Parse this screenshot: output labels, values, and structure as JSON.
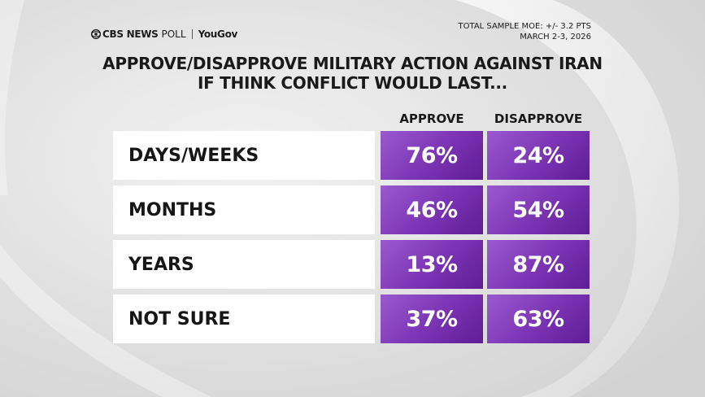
{
  "header": {
    "brand": "CBS NEWS",
    "brand_suffix": "POLL",
    "partner": "YouGov",
    "moe": "TOTAL SAMPLE MOE: +/- 3.2 PTS",
    "date": "MARCH 2-3, 2026"
  },
  "chart_data": {
    "type": "table",
    "title_line1": "APPROVE/DISAPPROVE MILITARY ACTION AGAINST IRAN",
    "title_line2": "IF THINK CONFLICT WOULD LAST...",
    "columns": [
      "APPROVE",
      "DISAPPROVE"
    ],
    "rows": [
      {
        "label": "DAYS/WEEKS",
        "approve": "76%",
        "disapprove": "24%"
      },
      {
        "label": "MONTHS",
        "approve": "46%",
        "disapprove": "54%"
      },
      {
        "label": "YEARS",
        "approve": "13%",
        "disapprove": "87%"
      },
      {
        "label": "NOT SURE",
        "approve": "37%",
        "disapprove": "63%"
      }
    ],
    "series": [
      {
        "name": "APPROVE",
        "values": [
          76,
          46,
          13,
          37
        ]
      },
      {
        "name": "DISAPPROVE",
        "values": [
          24,
          54,
          87,
          63
        ]
      }
    ]
  },
  "colors": {
    "cell": "#7a33b3",
    "row_bg": "#ffffff",
    "background": "#e2e2e2"
  }
}
